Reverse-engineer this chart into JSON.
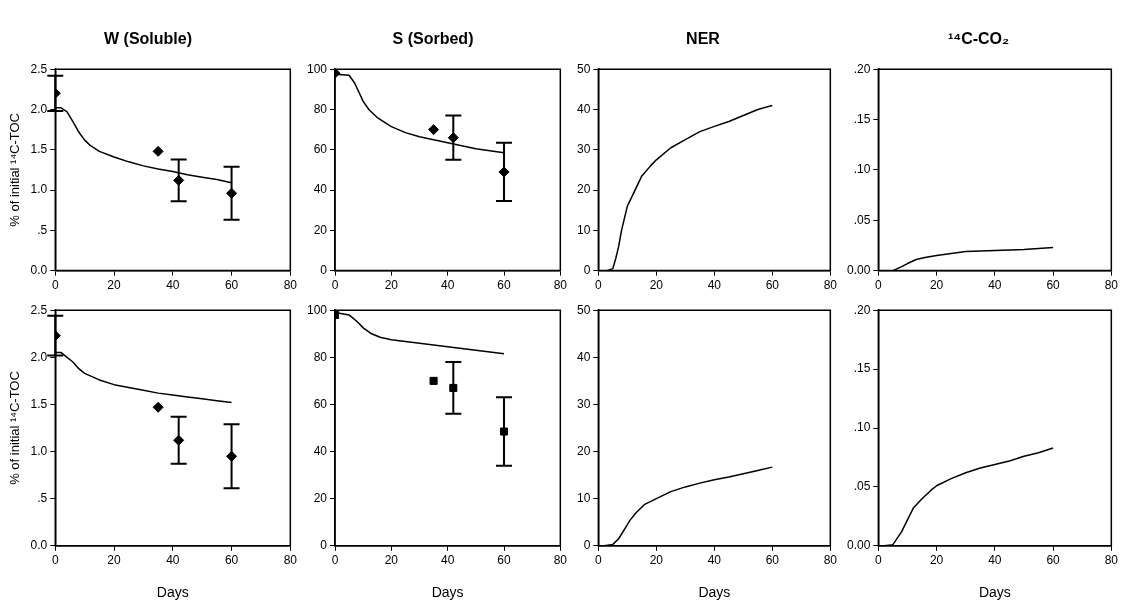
{
  "chart_data": [
    {
      "type": "line",
      "title": "W (Soluble)",
      "ylabel": "% of initial ¹⁴C-TOC",
      "xlim": [
        0,
        80
      ],
      "xticks": [
        0,
        20,
        40,
        60,
        80
      ],
      "ylim": [
        0,
        2.5
      ],
      "yticks": [
        {
          "value": 0,
          "label": "0.0"
        },
        {
          "value": 0.5,
          "label": ".5"
        },
        {
          "value": 1,
          "label": "1.0"
        },
        {
          "value": 1.5,
          "label": "1.5"
        },
        {
          "value": 2,
          "label": "2.0"
        },
        {
          "value": 2.5,
          "label": "2.5"
        }
      ],
      "grid": false,
      "series": [
        {
          "type": "line",
          "color": "#000000",
          "x": [
            0,
            2,
            4,
            6,
            8,
            10,
            12,
            15,
            20,
            25,
            30,
            35,
            40,
            45,
            50,
            55,
            60
          ],
          "values": [
            2.02,
            2.02,
            1.97,
            1.85,
            1.72,
            1.62,
            1.55,
            1.48,
            1.41,
            1.35,
            1.3,
            1.26,
            1.23,
            1.19,
            1.16,
            1.13,
            1.09
          ]
        },
        {
          "type": "scatter",
          "marker": "diamond",
          "color": "#000000",
          "x": [
            0,
            35,
            42,
            60
          ],
          "values": [
            2.2,
            1.48,
            1.12,
            0.96
          ],
          "errors": [
            0.22,
            null,
            0.26,
            0.33
          ]
        }
      ]
    },
    {
      "type": "line",
      "title": "S (Sorbed)",
      "xlim": [
        0,
        80
      ],
      "xticks": [
        0,
        20,
        40,
        60,
        80
      ],
      "ylim": [
        0,
        100
      ],
      "yticks": [
        0,
        20,
        40,
        60,
        80,
        100
      ],
      "grid": false,
      "series": [
        {
          "type": "line",
          "color": "#000000",
          "x": [
            0,
            5,
            7,
            10,
            12,
            15,
            20,
            25,
            30,
            35,
            40,
            45,
            50,
            55,
            60
          ],
          "values": [
            97.5,
            97,
            93,
            84,
            80,
            76,
            71.5,
            68.5,
            66.5,
            65,
            63.5,
            62,
            60.5,
            59.5,
            58.5
          ]
        },
        {
          "type": "scatter",
          "marker": "diamond",
          "color": "#000000",
          "x": [
            0,
            35,
            42,
            60
          ],
          "values": [
            98,
            70,
            66,
            49
          ],
          "errors": [
            null,
            null,
            11,
            14.5
          ]
        }
      ]
    },
    {
      "type": "line",
      "title": "NER",
      "xlim": [
        0,
        80
      ],
      "xticks": [
        0,
        20,
        40,
        60,
        80
      ],
      "ylim": [
        0,
        50
      ],
      "yticks": [
        0,
        10,
        20,
        30,
        40,
        50
      ],
      "grid": false,
      "series": [
        {
          "type": "line",
          "color": "#000000",
          "x": [
            3,
            5,
            6,
            7,
            8,
            10,
            12,
            15,
            18,
            20,
            25,
            30,
            35,
            40,
            45,
            50,
            55,
            60
          ],
          "values": [
            0,
            0.5,
            3,
            6,
            10,
            16,
            19,
            23.5,
            26,
            27.5,
            30.5,
            32.5,
            34.5,
            35.8,
            37,
            38.5,
            40,
            41
          ]
        }
      ]
    },
    {
      "type": "line",
      "title": "¹⁴C-CO₂",
      "xlim": [
        0,
        80
      ],
      "xticks": [
        0,
        20,
        40,
        60,
        80
      ],
      "ylim": [
        0,
        0.2
      ],
      "yticks": [
        {
          "value": 0,
          "label": "0.00"
        },
        {
          "value": 0.05,
          "label": ".05"
        },
        {
          "value": 0.1,
          "label": ".10"
        },
        {
          "value": 0.15,
          "label": ".15"
        },
        {
          "value": 0.2,
          "label": ".20"
        }
      ],
      "grid": false,
      "series": [
        {
          "type": "line",
          "color": "#000000",
          "x": [
            5,
            8,
            10,
            13,
            16,
            20,
            25,
            30,
            40,
            50,
            60
          ],
          "values": [
            0,
            0.004,
            0.007,
            0.011,
            0.013,
            0.015,
            0.017,
            0.019,
            0.02,
            0.021,
            0.023
          ]
        }
      ]
    },
    {
      "type": "line",
      "xlabel": "Days",
      "ylabel": "% of initial ¹⁴C-TOC",
      "xlim": [
        0,
        80
      ],
      "xticks": [
        0,
        20,
        40,
        60,
        80
      ],
      "ylim": [
        0,
        2.5
      ],
      "yticks": [
        {
          "value": 0,
          "label": "0.0"
        },
        {
          "value": 0.5,
          "label": ".5"
        },
        {
          "value": 1,
          "label": "1.0"
        },
        {
          "value": 1.5,
          "label": "1.5"
        },
        {
          "value": 2,
          "label": "2.0"
        },
        {
          "value": 2.5,
          "label": "2.5"
        }
      ],
      "grid": false,
      "series": [
        {
          "type": "line",
          "color": "#000000",
          "x": [
            0,
            2,
            4,
            6,
            8,
            10,
            15,
            20,
            25,
            30,
            35,
            40,
            45,
            50,
            55,
            60
          ],
          "values": [
            2.05,
            2.05,
            2.0,
            1.95,
            1.88,
            1.83,
            1.76,
            1.71,
            1.68,
            1.65,
            1.62,
            1.6,
            1.58,
            1.56,
            1.54,
            1.52
          ]
        },
        {
          "type": "scatter",
          "marker": "diamond",
          "color": "#000000",
          "x": [
            0,
            35,
            42,
            60
          ],
          "values": [
            2.23,
            1.47,
            1.12,
            0.95
          ],
          "errors": [
            0.21,
            null,
            0.25,
            0.34
          ]
        }
      ]
    },
    {
      "type": "line",
      "xlabel": "Days",
      "xlim": [
        0,
        80
      ],
      "xticks": [
        0,
        20,
        40,
        60,
        80
      ],
      "ylim": [
        0,
        100
      ],
      "yticks": [
        0,
        20,
        40,
        60,
        80,
        100
      ],
      "grid": false,
      "series": [
        {
          "type": "line",
          "color": "#000000",
          "x": [
            0,
            5,
            8,
            10,
            13,
            16,
            20,
            30,
            40,
            50,
            60
          ],
          "values": [
            99,
            98,
            95,
            92.5,
            90,
            88.5,
            87.5,
            86,
            84.5,
            83,
            81.5
          ]
        },
        {
          "type": "scatter",
          "marker": "square",
          "color": "#000000",
          "x": [
            0,
            35,
            42,
            60
          ],
          "values": [
            98,
            70,
            67,
            48.5
          ],
          "errors": [
            null,
            null,
            11,
            14.5
          ]
        }
      ]
    },
    {
      "type": "line",
      "xlabel": "Days",
      "xlim": [
        0,
        80
      ],
      "xticks": [
        0,
        20,
        40,
        60,
        80
      ],
      "ylim": [
        0,
        50
      ],
      "yticks": [
        0,
        10,
        20,
        30,
        40,
        50
      ],
      "grid": false,
      "series": [
        {
          "type": "line",
          "color": "#000000",
          "x": [
            2,
            5,
            7,
            9,
            11,
            13,
            16,
            20,
            25,
            30,
            35,
            40,
            45,
            50,
            55,
            60
          ],
          "values": [
            0,
            0.3,
            1.5,
            3.5,
            5.5,
            7,
            8.8,
            10,
            11.5,
            12.5,
            13.3,
            14,
            14.6,
            15.3,
            16,
            16.7
          ]
        }
      ]
    },
    {
      "type": "line",
      "xlabel": "Days",
      "xlim": [
        0,
        80
      ],
      "xticks": [
        0,
        20,
        40,
        60,
        80
      ],
      "ylim": [
        0,
        0.2
      ],
      "yticks": [
        {
          "value": 0,
          "label": "0.00"
        },
        {
          "value": 0.05,
          "label": ".05"
        },
        {
          "value": 0.1,
          "label": ".10"
        },
        {
          "value": 0.15,
          "label": ".15"
        },
        {
          "value": 0.2,
          "label": ".20"
        }
      ],
      "grid": false,
      "series": [
        {
          "type": "line",
          "color": "#000000",
          "x": [
            2,
            5,
            8,
            10,
            12,
            15,
            18,
            20,
            25,
            30,
            35,
            40,
            45,
            50,
            55,
            60
          ],
          "values": [
            0,
            0.001,
            0.012,
            0.022,
            0.032,
            0.04,
            0.047,
            0.051,
            0.057,
            0.062,
            0.066,
            0.069,
            0.072,
            0.076,
            0.079,
            0.083
          ]
        }
      ]
    }
  ]
}
